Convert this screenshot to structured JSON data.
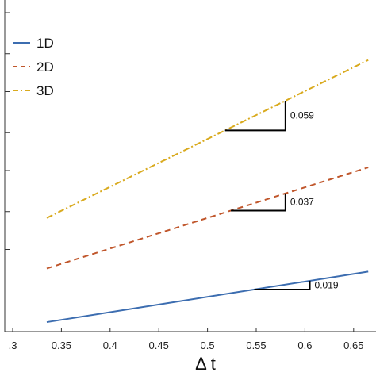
{
  "chart_data": {
    "type": "line",
    "title": "",
    "xlabel": "Δ t",
    "ylabel": "",
    "xlim": [
      0.3,
      0.67
    ],
    "ylim": [
      0,
      1
    ],
    "x_ticks": [
      {
        "value": 0.3,
        "label": ".3"
      },
      {
        "value": 0.35,
        "label": "0.35"
      },
      {
        "value": 0.4,
        "label": "0.4"
      },
      {
        "value": 0.45,
        "label": "0.45"
      },
      {
        "value": 0.5,
        "label": "0.5"
      },
      {
        "value": 0.55,
        "label": "0.55"
      },
      {
        "value": 0.6,
        "label": "0.6"
      },
      {
        "value": 0.65,
        "label": "0.65"
      }
    ],
    "y_ticks": [
      0.25,
      0.37,
      0.5,
      0.62,
      0.75,
      0.87,
      1.0
    ],
    "legend_position": "top-left",
    "series": [
      {
        "name": "1D",
        "color": "#3c6db0",
        "style": "solid",
        "x": [
          0.335,
          0.665
        ],
        "y": [
          0.03,
          0.19
        ]
      },
      {
        "name": "2D",
        "color": "#c0562b",
        "style": "dashed",
        "x": [
          0.335,
          0.665
        ],
        "y": [
          0.2,
          0.52
        ]
      },
      {
        "name": "3D",
        "color": "#d9aa1e",
        "style": "dashdot",
        "x": [
          0.335,
          0.665
        ],
        "y": [
          0.36,
          0.86
        ]
      }
    ],
    "annotations": [
      {
        "label": "0.059",
        "series": "3D",
        "x0": 0.518,
        "x1": 0.58
      },
      {
        "label": "0.037",
        "series": "2D",
        "x0": 0.524,
        "x1": 0.58
      },
      {
        "label": "0.019",
        "series": "1D",
        "x0": 0.548,
        "x1": 0.605
      }
    ]
  }
}
